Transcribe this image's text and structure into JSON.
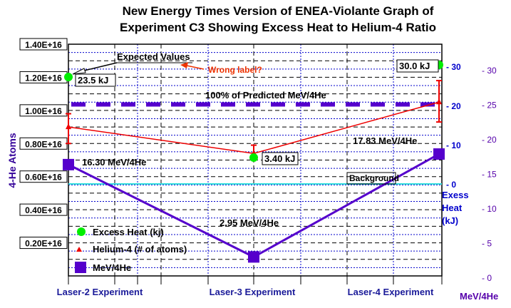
{
  "chart_data": {
    "type": "line",
    "title": [
      "New Energy Times Version of ENEA-Violante Graph of",
      "Experiment C3 Showing Excess Heat to Helium-4 Ratio"
    ],
    "categories": [
      "Laser-2 Experiment",
      "Laser-3 Experiment",
      "Laser-4 Experiment"
    ],
    "axes": {
      "left": {
        "label": "4-He Atoms",
        "ylim": [
          0,
          1.4e+16
        ],
        "ticks": [
          "0.20E+16",
          "0.40E+16",
          "0.60E+16",
          "0.80E+16",
          "1.00E+16",
          "1.20E+16",
          "1.40E+16"
        ],
        "tick_values": [
          2000000000000000.0,
          4000000000000000.0,
          6000000000000000.0,
          8000000000000000.0,
          1e+16,
          1.2e+16,
          1.4e+16
        ]
      },
      "right_heat": {
        "label": [
          "Exess",
          "Heat",
          "(kJ)"
        ],
        "ylim": [
          0,
          30
        ],
        "ticks": [
          "- 30",
          "- 20",
          "- 10",
          "- 0"
        ],
        "tick_values": [
          30,
          20,
          10,
          0
        ],
        "color": "#0000cc"
      },
      "right_mev": {
        "label": "MeV/4He",
        "ylim": [
          0,
          30
        ],
        "ticks": [
          "- 30",
          "- 25",
          "- 20",
          "- 15",
          "- 10",
          "- 5",
          "- 0"
        ],
        "tick_values": [
          30,
          25,
          20,
          15,
          10,
          5,
          0
        ],
        "color": "#5500aa"
      }
    },
    "series": [
      {
        "name": "Excess Heat (kj)",
        "axis": "right_heat",
        "values": [
          23.5,
          3.4,
          30.0
        ],
        "labels": [
          "23.5 kJ",
          "3.40 kJ",
          "30.0 kJ"
        ],
        "color": "#00ee00",
        "marker": "circle"
      },
      {
        "name": "Helium-4 (# of atoms)",
        "axis": "left",
        "values": [
          9000000000000000.0,
          7400000000000000.0,
          1.05e+16
        ],
        "error_low": [
          8000000000000000.0,
          7000000000000000.0,
          9300000000000000.0
        ],
        "error_high": [
          9800000000000000.0,
          7900000000000000.0,
          1.18e+16
        ],
        "color": "#ee0000",
        "marker": "triangle"
      },
      {
        "name": "MeV/4He",
        "axis": "right_mev",
        "values": [
          16.3,
          2.95,
          17.83
        ],
        "labels": [
          "16.30 MeV/4He",
          "2.95 MeV/4He",
          "17.83 MeV/4He"
        ],
        "color": "#5500cc",
        "marker": "square"
      }
    ],
    "reference_lines": [
      {
        "label": "100% of Predicted MeV/4He",
        "axis": "right_mev",
        "value": 25,
        "color": "#5500cc",
        "style": "dashed"
      },
      {
        "label": "Background",
        "axis": "right_heat",
        "value": 0,
        "color": "#33dddd",
        "style": "solid"
      }
    ],
    "annotations": {
      "expected": "Expected Values",
      "wrong": "Wrong label?",
      "wrong_color": "#ee3300"
    },
    "grid": true,
    "legend_placement": "bottom-left"
  }
}
